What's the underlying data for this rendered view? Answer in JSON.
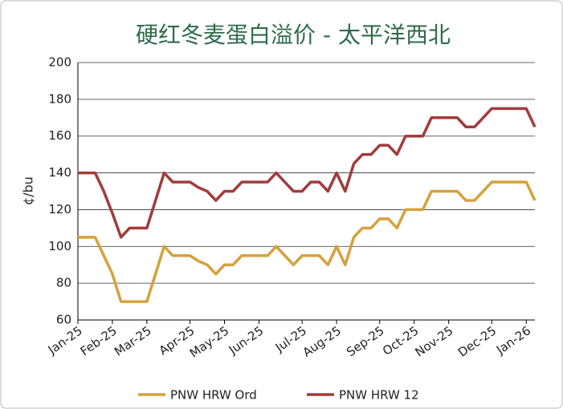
{
  "chart_data": {
    "type": "line",
    "title": "硬红冬麦蛋白溢价 - 太平洋西北",
    "y_label": "¢/bu",
    "categories": [
      "Jan-25",
      null,
      null,
      null,
      "Feb-25",
      null,
      null,
      null,
      "Mar-25",
      null,
      null,
      null,
      null,
      "Apr-25",
      null,
      null,
      null,
      "May-25",
      null,
      null,
      null,
      "Jun-25",
      null,
      null,
      null,
      null,
      "Jul-25",
      null,
      null,
      null,
      "Aug-25",
      null,
      null,
      null,
      null,
      "Sep-25",
      null,
      null,
      null,
      "Oct-25",
      null,
      null,
      null,
      "Nov-25",
      null,
      null,
      null,
      null,
      "Dec-25",
      null,
      null,
      null,
      "Jan-26",
      null
    ],
    "series": [
      {
        "name": "PNW HRW Ord",
        "color": "#d6a13c",
        "values": [
          105,
          105,
          105,
          95,
          85,
          70,
          70,
          70,
          70,
          85,
          100,
          95,
          95,
          95,
          92,
          90,
          85,
          90,
          90,
          95,
          95,
          95,
          95,
          100,
          95,
          90,
          95,
          95,
          95,
          90,
          100,
          90,
          105,
          110,
          110,
          115,
          115,
          110,
          120,
          120,
          120,
          130,
          130,
          130,
          130,
          125,
          125,
          130,
          135,
          135,
          135,
          135,
          135,
          125
        ]
      },
      {
        "name": "PNW HRW 12",
        "color": "#a33b3b",
        "values": [
          140,
          140,
          140,
          130,
          118,
          105,
          110,
          110,
          110,
          125,
          140,
          135,
          135,
          135,
          132,
          130,
          125,
          130,
          130,
          135,
          135,
          135,
          135,
          140,
          135,
          130,
          130,
          135,
          135,
          130,
          140,
          130,
          145,
          150,
          150,
          155,
          155,
          150,
          160,
          160,
          160,
          170,
          170,
          170,
          170,
          165,
          165,
          170,
          175,
          175,
          175,
          175,
          175,
          165
        ]
      }
    ],
    "ylim": [
      60,
      200
    ],
    "yticks": [
      60,
      80,
      100,
      120,
      140,
      160,
      180,
      200
    ],
    "grid": true,
    "legend": "bottom"
  }
}
